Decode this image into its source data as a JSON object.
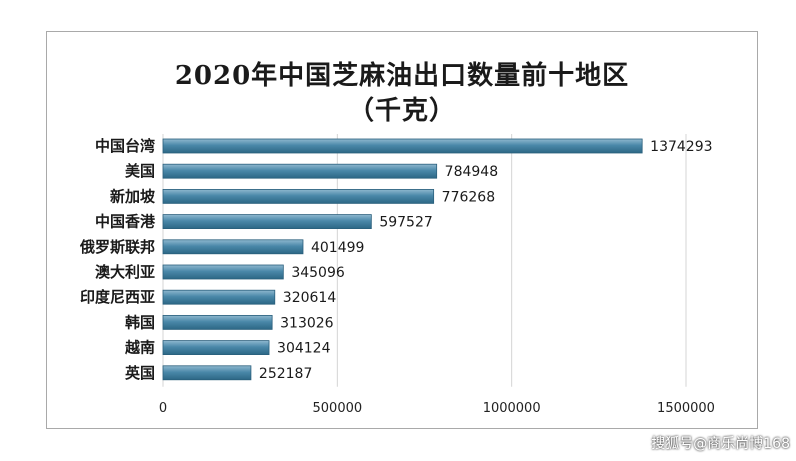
{
  "title_line1": "2020年中国芝麻油出口数量前十地区",
  "title_line2": "（千克）",
  "watermark": "搜狐号@商乐尚博168",
  "chart_data": {
    "type": "bar",
    "orientation": "horizontal",
    "categories": [
      "中国台湾",
      "美国",
      "新加坡",
      "中国香港",
      "俄罗斯联邦",
      "澳大利亚",
      "印度尼西亚",
      "韩国",
      "越南",
      "英国"
    ],
    "values": [
      1374293,
      784948,
      776268,
      597527,
      401499,
      345096,
      320614,
      313026,
      304124,
      252187
    ],
    "xlim": [
      0,
      1500000
    ],
    "x_ticks": [
      0,
      500000,
      1000000,
      1500000
    ],
    "tick_labels": [
      "0",
      "500000",
      "1000000",
      "1500000"
    ],
    "grid": "vertical",
    "bar_color": "#3f7fa0"
  }
}
